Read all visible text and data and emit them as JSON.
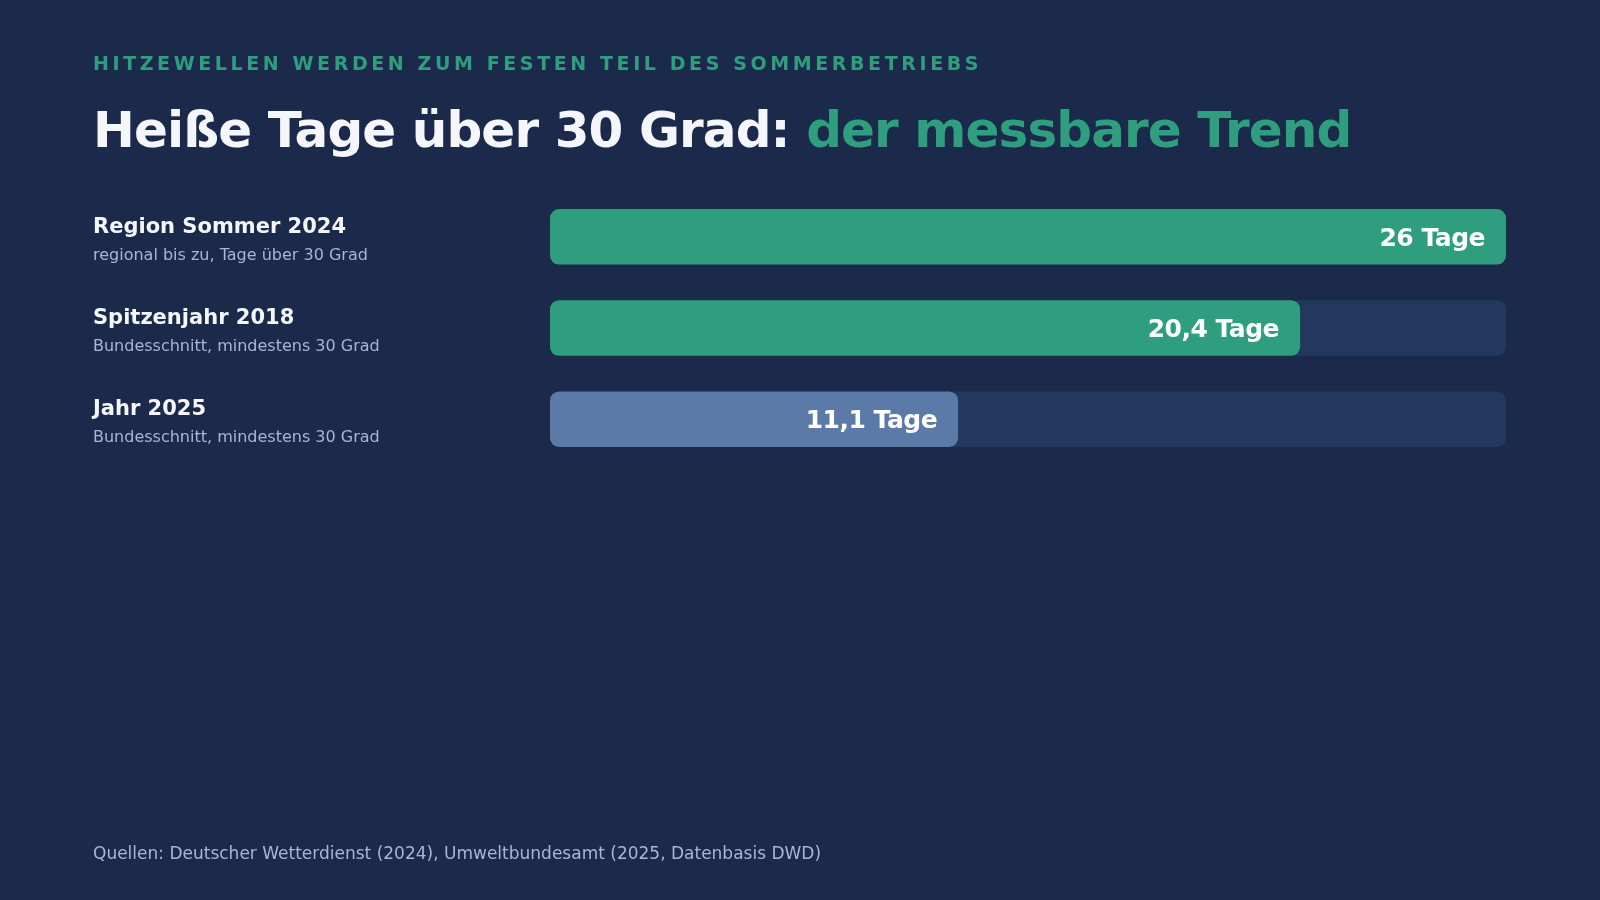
{
  "chart_data": {
    "type": "bar",
    "orientation": "horizontal",
    "subtitle": "HITZEWELLEN WERDEN ZUM FESTEN TEIL DES SOMMERBETRIEBS",
    "title": "Heiße Tage über 30 Grad: der messbare Trend",
    "categories": [
      "Region Sommer 2024\nregional bis zu, Tage über 30 Grad",
      "Spitzenjahr 2018\nBundesschnitt, mindestens 30 Grad",
      "Jahr 2025\nBundesschnitt, mindestens 30 Grad"
    ],
    "values": [
      26,
      20.4,
      11.1
    ],
    "colors": [
      "#2e9e7e",
      "#2e9e7e",
      "#5b7aa8"
    ],
    "value_labels": [
      "26 Tage",
      "20,4 Tage",
      "11,1 Tage"
    ],
    "tick_labels": "y",
    "annotations": [
      "Quellen: Deutscher Wetterdienst (2024), Umweltbundesamt (2025, Datenbasis DWD)"
    ]
  }
}
